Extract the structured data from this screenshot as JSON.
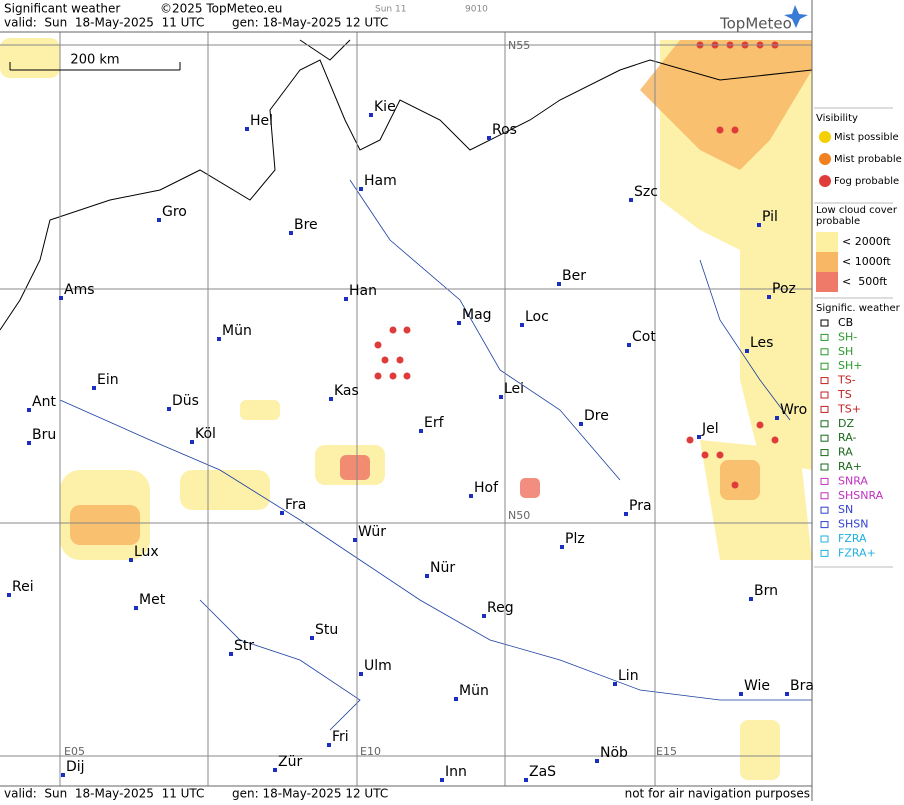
{
  "header": {
    "title": "Significant weather",
    "copyright": "©2025 TopMeteo.eu",
    "slot": "Sun 11",
    "code": "9010",
    "valid": "valid:  Sun  18-May-2025  11 UTC",
    "generated": "gen: 18-May-2025 12 UTC",
    "logo": "TopMeteo"
  },
  "map": {
    "scale": "200 km",
    "grid_labels": [
      "N55",
      "N50",
      "E05",
      "E10",
      "E15"
    ],
    "cities": [
      "Hel",
      "Kie",
      "Ros",
      "Ham",
      "Szc",
      "Gro",
      "Bre",
      "Pil",
      "Ber",
      "Ams",
      "Han",
      "Poz",
      "Mag",
      "Loc",
      "Mün",
      "Cot",
      "Les",
      "Ein",
      "Kas",
      "Lei",
      "Ant",
      "Düs",
      "Wro",
      "Dre",
      "Erf",
      "Jel",
      "Bru",
      "Köl",
      "Hof",
      "Fra",
      "Pra",
      "Wür",
      "Lux",
      "Plz",
      "Nür",
      "Rei",
      "Brn",
      "Met",
      "Reg",
      "Stu",
      "Str",
      "Ulm",
      "Lin",
      "Wie",
      "Bra",
      "Mün",
      "Fri",
      "Nöb",
      "Dij",
      "Zür",
      "Inn",
      "ZaS"
    ]
  },
  "legend": {
    "visibility": {
      "title": "Visibility",
      "items": [
        "Mist possible",
        "Mist probable",
        "Fog probable"
      ]
    },
    "low_cloud": {
      "title": "Low cloud cover probable",
      "items": [
        "< 2000ft",
        "< 1000ft",
        "<  500ft"
      ]
    },
    "significant_weather": {
      "title": "Signific. weather",
      "items": [
        "CB",
        "SH-",
        "SH",
        "SH+",
        "TS-",
        "TS",
        "TS+",
        "DZ",
        "RA-",
        "RA",
        "RA+",
        "SNRA",
        "SHSNRA",
        "SN",
        "SHSN",
        "FZRA",
        "FZRA+"
      ]
    }
  },
  "footer": {
    "valid": "valid:  Sun  18-May-2025  11 UTC",
    "generated": "gen: 18-May-2025 12 UTC",
    "note": "not for air navigation purposes"
  }
}
